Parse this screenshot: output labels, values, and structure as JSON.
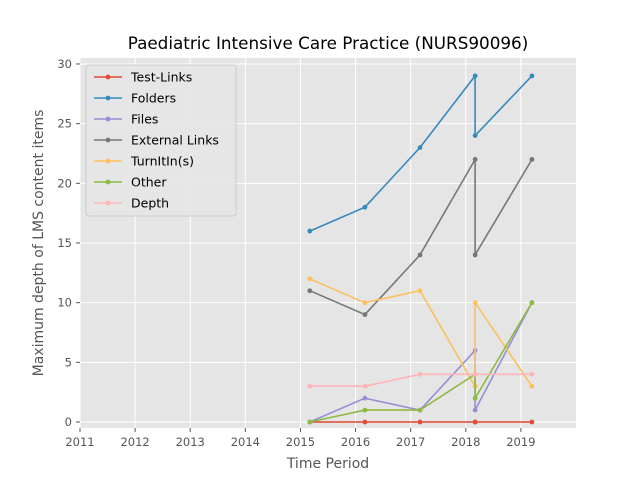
{
  "chart_data": {
    "type": "line",
    "title": "Paediatric Intensive Care Practice (NURS90096)",
    "xlabel": "Time Period",
    "ylabel": "Maximum depth of LMS content items",
    "xlim": [
      2011,
      2020
    ],
    "ylim": [
      -0.5,
      30.5
    ],
    "xticks": [
      "2011",
      "2012",
      "2013",
      "2014",
      "2015",
      "2016",
      "2017",
      "2018",
      "2019"
    ],
    "yticks": [
      "0",
      "5",
      "10",
      "15",
      "20",
      "25",
      "30"
    ],
    "grid": true,
    "legend_position": "top-left",
    "series": [
      {
        "name": "Test-Links",
        "color": "#e24a33",
        "x": [
          2015.17,
          2016.17,
          2017.17,
          2018.17,
          2018.17,
          2019.2
        ],
        "y": [
          0,
          0,
          0,
          0,
          0,
          0
        ]
      },
      {
        "name": "Folders",
        "color": "#348abd",
        "x": [
          2015.17,
          2016.17,
          2017.17,
          2018.17,
          2018.17,
          2019.2
        ],
        "y": [
          16,
          18,
          23,
          29,
          24,
          29
        ]
      },
      {
        "name": "Files",
        "color": "#988ed5",
        "x": [
          2015.17,
          2016.17,
          2017.17,
          2018.17,
          2018.17,
          2019.2
        ],
        "y": [
          0,
          2,
          1,
          6,
          1,
          10
        ]
      },
      {
        "name": "External Links",
        "color": "#777777",
        "x": [
          2015.17,
          2016.17,
          2017.17,
          2018.17,
          2018.17,
          2019.2
        ],
        "y": [
          11,
          9,
          14,
          22,
          14,
          22
        ]
      },
      {
        "name": "TurnItIn(s)",
        "color": "#fbc15e",
        "x": [
          2015.17,
          2016.17,
          2017.17,
          2018.17,
          2018.17,
          2019.2
        ],
        "y": [
          12,
          10,
          11,
          3,
          10,
          3
        ]
      },
      {
        "name": "Other",
        "color": "#8eba42",
        "x": [
          2015.17,
          2016.17,
          2017.17,
          2018.17,
          2018.17,
          2019.2
        ],
        "y": [
          0,
          1,
          1,
          4,
          2,
          10
        ]
      },
      {
        "name": "Depth",
        "color": "#ffb5b8",
        "x": [
          2015.17,
          2016.17,
          2017.17,
          2018.17,
          2018.17,
          2019.2
        ],
        "y": [
          3,
          3,
          4,
          4,
          4,
          4
        ]
      }
    ]
  }
}
